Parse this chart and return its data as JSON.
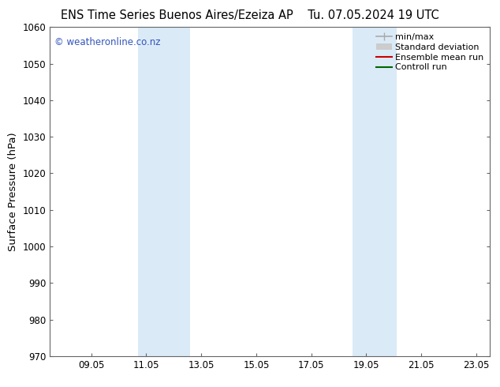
{
  "title_left": "ENS Time Series Buenos Aires/Ezeiza AP",
  "title_right": "Tu. 07.05.2024 19 UTC",
  "ylabel": "Surface Pressure (hPa)",
  "ylim": [
    970,
    1060
  ],
  "yticks": [
    970,
    980,
    990,
    1000,
    1010,
    1020,
    1030,
    1040,
    1050,
    1060
  ],
  "xlim": [
    7.5,
    23.5
  ],
  "xtick_labels": [
    "09.05",
    "11.05",
    "13.05",
    "15.05",
    "17.05",
    "19.05",
    "21.05",
    "23.05"
  ],
  "xtick_positions": [
    9.0,
    11.0,
    13.0,
    15.0,
    17.0,
    19.0,
    21.0,
    23.0
  ],
  "shaded_regions": [
    {
      "xstart": 10.7,
      "xend": 12.6
    },
    {
      "xstart": 18.5,
      "xend": 20.1
    }
  ],
  "shaded_color": "#daeaf7",
  "watermark_text": "© weatheronline.co.nz",
  "watermark_color": "#3355bb",
  "legend_items": [
    {
      "label": "min/max",
      "color": "#aaaaaa",
      "lw": 1.2
    },
    {
      "label": "Standard deviation",
      "color": "#cccccc",
      "lw": 7
    },
    {
      "label": "Ensemble mean run",
      "color": "#cc0000",
      "lw": 1.5
    },
    {
      "label": "Controll run",
      "color": "#006600",
      "lw": 1.5
    }
  ],
  "bg_color": "#ffffff",
  "spine_color": "#666666",
  "title_fontsize": 10.5,
  "tick_fontsize": 8.5,
  "ylabel_fontsize": 9.5,
  "legend_fontsize": 8,
  "watermark_fontsize": 8.5
}
